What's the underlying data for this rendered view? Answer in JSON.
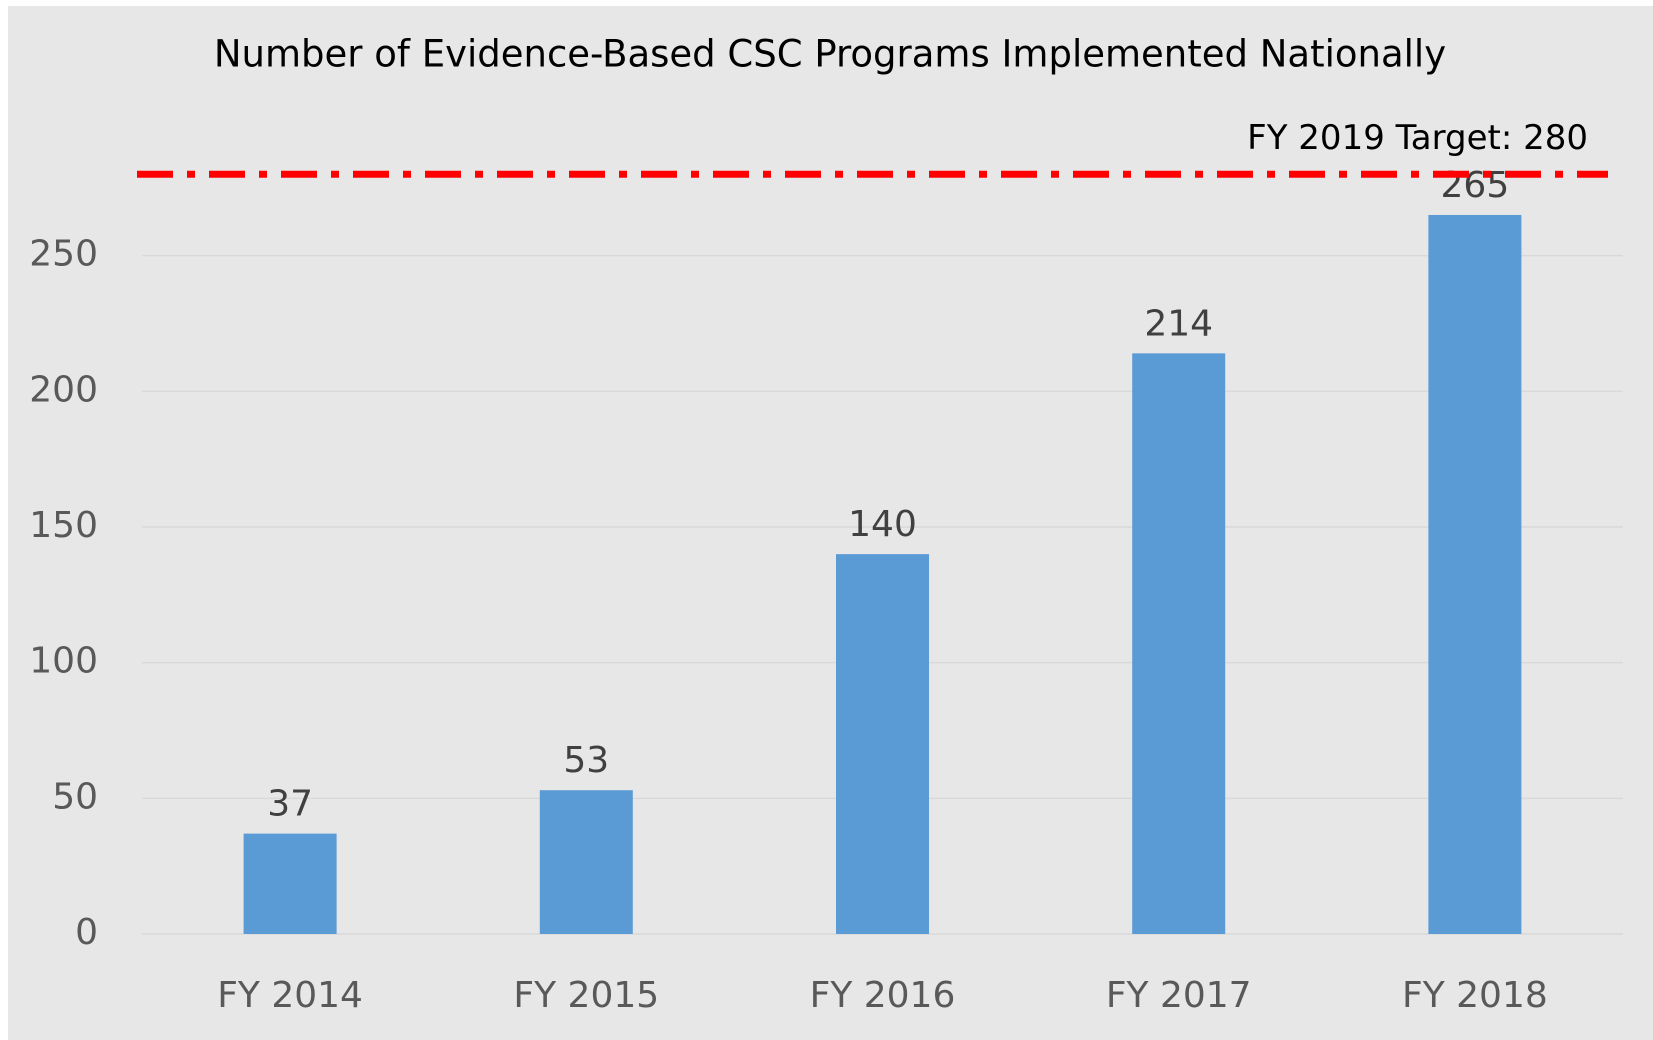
{
  "chart_data": {
    "type": "bar",
    "title": "Number of Evidence-Based CSC Programs Implemented Nationally",
    "categories": [
      "FY 2014",
      "FY 2015",
      "FY 2016",
      "FY 2017",
      "FY 2018"
    ],
    "values": [
      37,
      53,
      140,
      214,
      265
    ],
    "color": "#5b9bd5",
    "ylim": [
      0,
      300
    ],
    "yticks": [
      0,
      50,
      100,
      150,
      200,
      250
    ],
    "grid": true,
    "target": {
      "value": 280,
      "label": "FY 2019 Target: 280",
      "color": "#ff0000"
    }
  }
}
